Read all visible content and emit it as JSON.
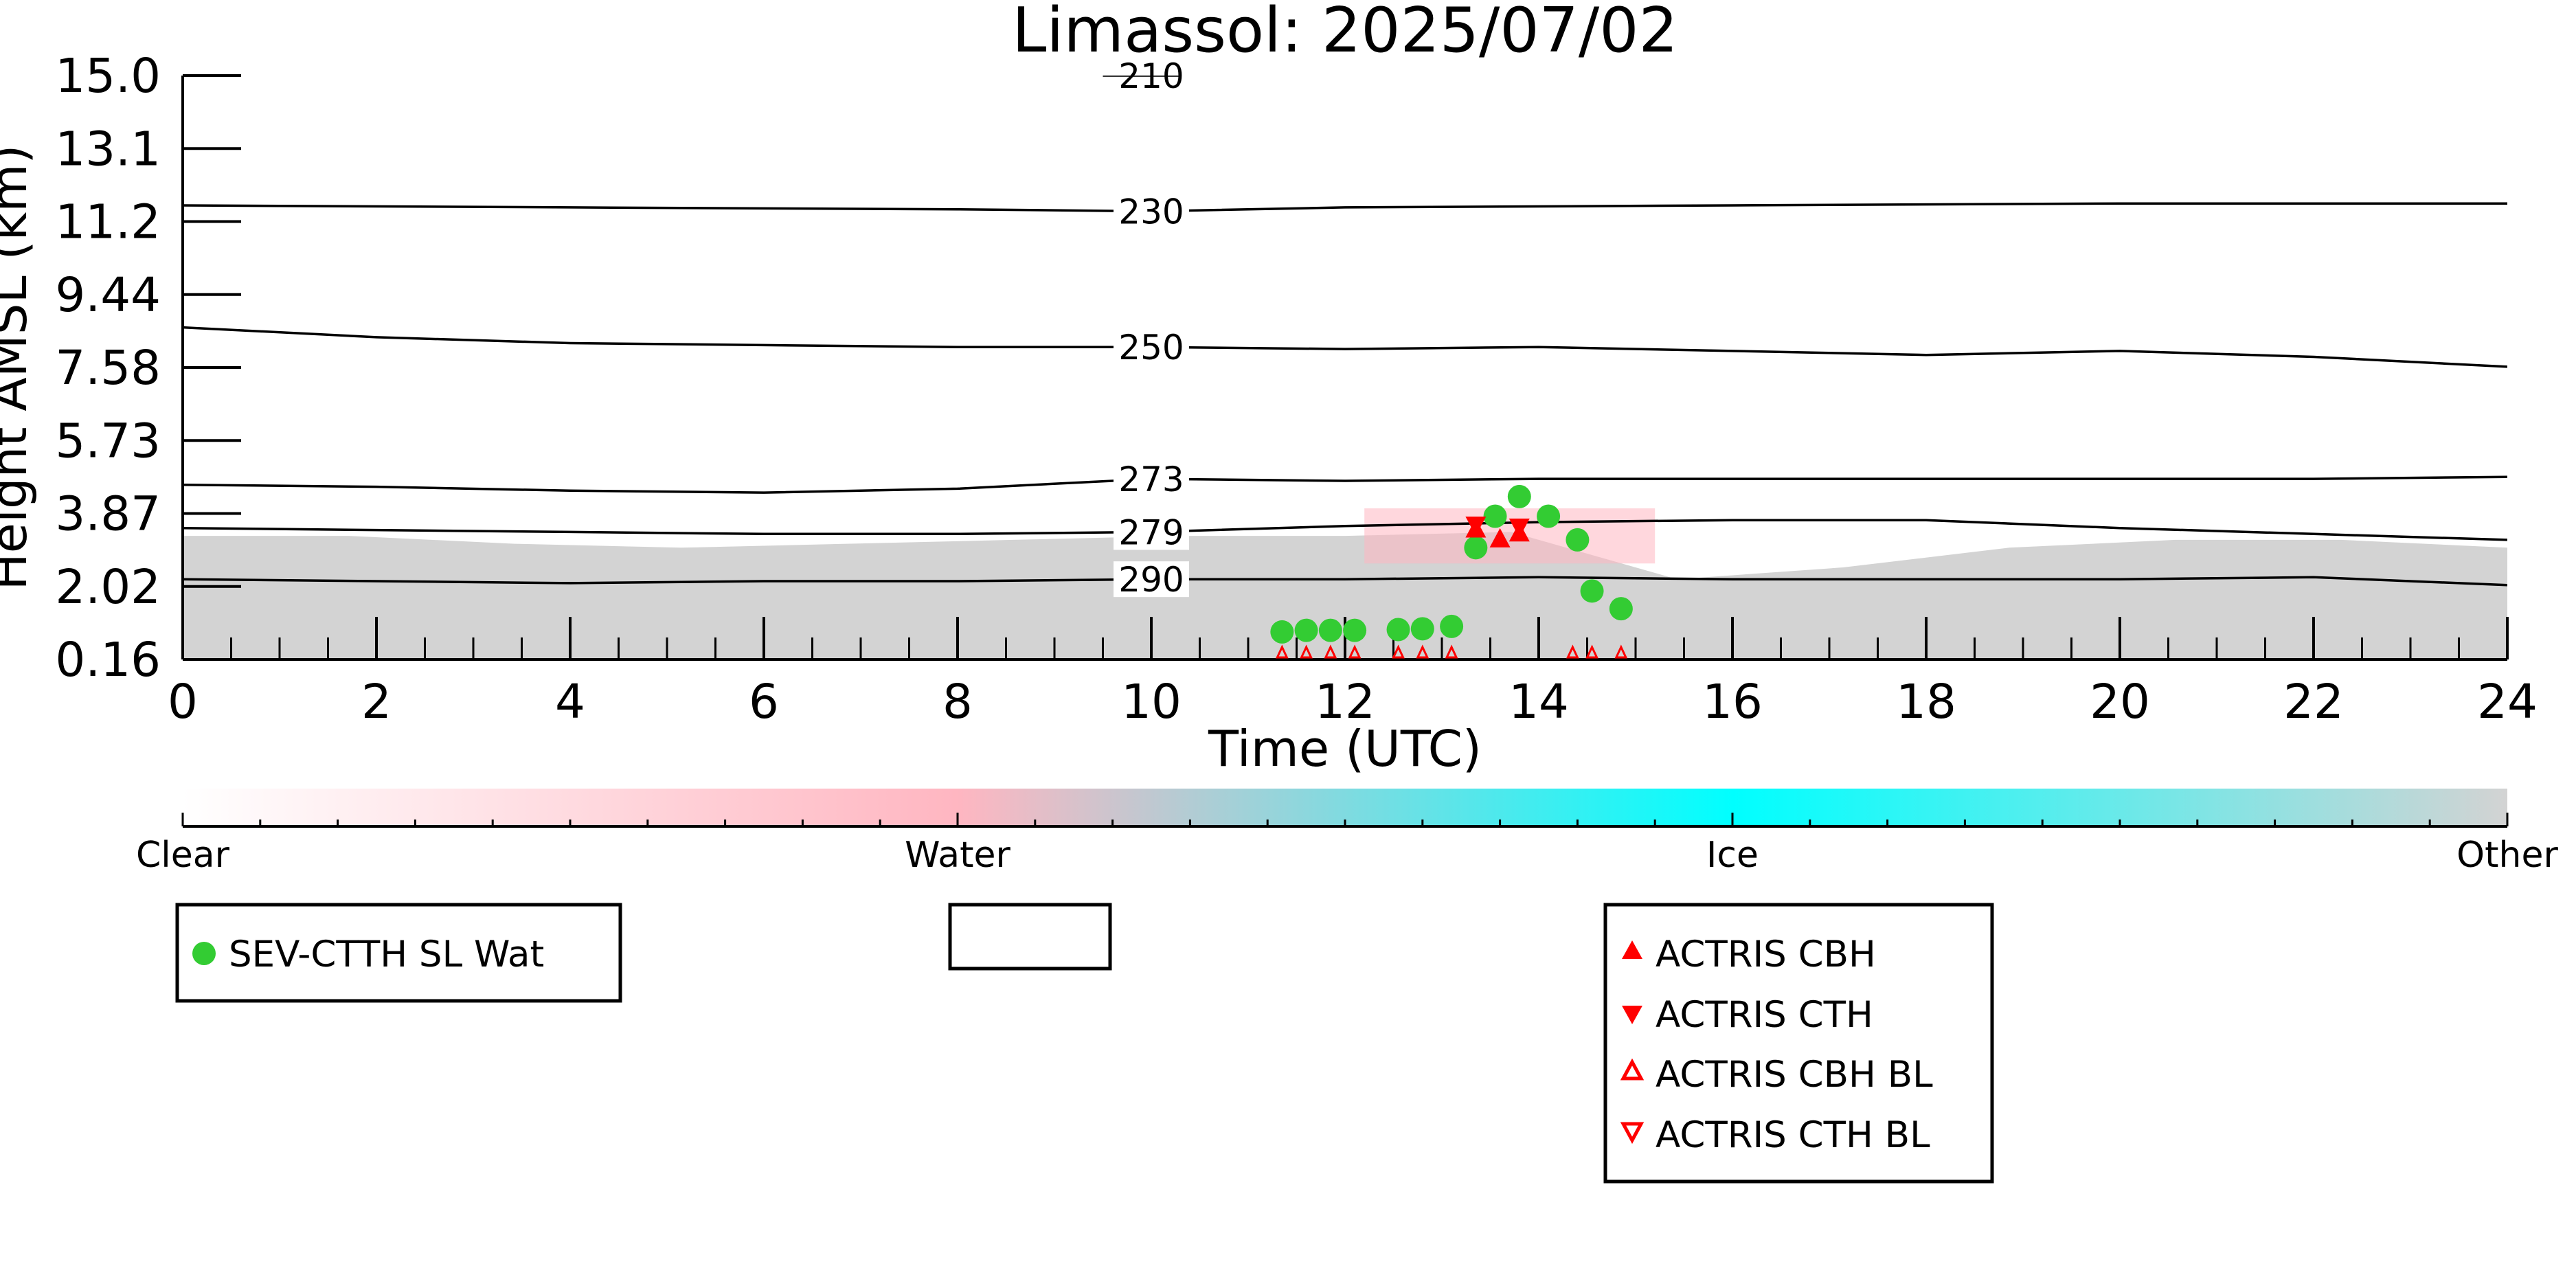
{
  "chart_data": {
    "type": "scatter",
    "title": "Limassol: 2025/07/02",
    "xlabel": "Time (UTC)",
    "ylabel": "Height AMSL (km)",
    "xlim": [
      0,
      24
    ],
    "ylim": [
      0.16,
      15.0
    ],
    "x_ticks": [
      "0",
      "2",
      "4",
      "6",
      "8",
      "10",
      "12",
      "14",
      "16",
      "18",
      "20",
      "22",
      "24"
    ],
    "y_ticks": [
      "0.16",
      "2.02",
      "3.87",
      "5.73",
      "7.58",
      "9.44",
      "11.2",
      "13.1",
      "15.0"
    ],
    "grid": false,
    "background_field": {
      "description_values": [
        "Clear",
        "Water",
        "Ice",
        "Other"
      ],
      "colors": [
        "#ffffff",
        "#ffb6c1",
        "#00ffff",
        "#d3d3d3"
      ],
      "layers": [
        {
          "class": "Other",
          "x": [
            0,
            24
          ],
          "y_bottom": 0.16,
          "y_top": [
            3.3,
            3.3,
            3.1,
            3.0,
            3.1,
            3.2,
            3.3,
            3.3,
            3.4,
            2.2,
            2.5,
            3.0,
            3.2,
            3.2,
            3.0
          ]
        },
        {
          "class": "Water",
          "x": [
            12.2,
            15.2
          ],
          "y_bottom": 2.6,
          "y_top": 4.0
        }
      ]
    },
    "contours": [
      {
        "label": "230",
        "x": [
          0,
          4,
          8,
          10,
          12,
          16,
          20,
          24
        ],
        "y": [
          11.7,
          11.65,
          11.6,
          11.55,
          11.65,
          11.7,
          11.75,
          11.75
        ]
      },
      {
        "label": "250",
        "x": [
          0,
          2,
          4,
          6,
          8,
          10,
          12,
          14,
          16,
          18,
          20,
          22,
          24
        ],
        "y": [
          8.6,
          8.35,
          8.2,
          8.15,
          8.1,
          8.1,
          8.05,
          8.1,
          8.0,
          7.9,
          8.0,
          7.85,
          7.6
        ]
      },
      {
        "label": "273",
        "x": [
          0,
          2,
          4,
          6,
          8,
          10,
          12,
          14,
          16,
          18,
          20,
          22,
          24
        ],
        "y": [
          4.6,
          4.55,
          4.45,
          4.4,
          4.5,
          4.75,
          4.7,
          4.75,
          4.75,
          4.75,
          4.75,
          4.75,
          4.8
        ]
      },
      {
        "label": "279",
        "x": [
          0,
          2,
          4,
          6,
          8,
          10,
          12,
          14,
          16,
          18,
          20,
          22,
          24
        ],
        "y": [
          3.5,
          3.45,
          3.4,
          3.35,
          3.35,
          3.4,
          3.55,
          3.65,
          3.7,
          3.7,
          3.5,
          3.35,
          3.2
        ]
      },
      {
        "label": "290",
        "x": [
          0,
          2,
          4,
          6,
          8,
          10,
          12,
          14,
          16,
          18,
          20,
          22,
          24
        ],
        "y": [
          2.2,
          2.15,
          2.1,
          2.15,
          2.15,
          2.2,
          2.2,
          2.25,
          2.2,
          2.2,
          2.2,
          2.25,
          2.05
        ]
      },
      {
        "label": "210",
        "x": [
          9.5,
          10.3
        ],
        "y": [
          15.0,
          15.0
        ]
      }
    ],
    "series": [
      {
        "name": "SEV-CTTH SL Wat",
        "marker": "circle",
        "color": "#33cc33",
        "x": [
          11.35,
          11.6,
          11.85,
          12.1,
          12.55,
          12.8,
          13.1,
          13.35,
          13.55,
          13.8,
          14.1,
          14.4,
          14.55,
          14.85
        ],
        "y": [
          0.86,
          0.9,
          0.9,
          0.9,
          0.92,
          0.94,
          1.0,
          3.0,
          3.8,
          4.3,
          3.8,
          3.2,
          1.9,
          1.45
        ]
      },
      {
        "name": "ACTRIS CBH",
        "marker": "triangle-up",
        "color": "#ff0000",
        "x": [
          13.35,
          13.6,
          13.8
        ],
        "y": [
          3.45,
          3.2,
          3.35
        ]
      },
      {
        "name": "ACTRIS CTH",
        "marker": "triangle-down",
        "color": "#ff0000",
        "x": [
          13.35,
          13.8
        ],
        "y": [
          3.6,
          3.55
        ]
      },
      {
        "name": "ACTRIS CBH BL",
        "marker": "triangle-up-open",
        "color": "#ff0000",
        "x": [
          11.35,
          11.6,
          11.85,
          12.1,
          12.55,
          12.8,
          13.1,
          14.35,
          14.55,
          14.85
        ],
        "y": [
          0.3,
          0.3,
          0.3,
          0.3,
          0.3,
          0.3,
          0.3,
          0.3,
          0.3,
          0.3
        ]
      },
      {
        "name": "ACTRIS CTH BL",
        "marker": "triangle-down-open",
        "color": "#ff0000",
        "x": [],
        "y": []
      }
    ],
    "colorbar": {
      "labels": [
        "Clear",
        "Water",
        "Ice",
        "Other"
      ],
      "colors": [
        "#ffffff",
        "#ffb6c1",
        "#00ffff",
        "#d3d3d3"
      ]
    },
    "legends": [
      {
        "entries": [
          "SEV-CTTH SL Wat"
        ]
      },
      {
        "entries": []
      },
      {
        "entries": [
          "ACTRIS CBH",
          "ACTRIS CTH",
          "ACTRIS CBH BL",
          "ACTRIS CTH BL"
        ]
      }
    ]
  }
}
